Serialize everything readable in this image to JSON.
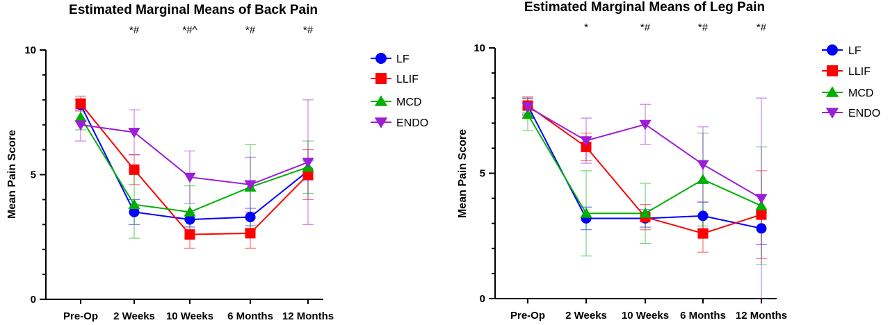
{
  "chart_data": [
    {
      "type": "line",
      "title": "Estimated Marginal Means of Back Pain",
      "ylabel": "Mean Pain Score",
      "xlabel": "",
      "ylim": [
        0,
        10
      ],
      "yticks": [
        "0",
        "5",
        "10"
      ],
      "categories": [
        "Pre-Op",
        "2 Weeks",
        "10 Weeks",
        "6 Months",
        "12 Months"
      ],
      "significance": [
        "",
        "*#",
        "*#^",
        "*#",
        "*#"
      ],
      "legend_position": "right",
      "series": [
        {
          "name": "LF",
          "color": "#0000FF",
          "marker": "circle",
          "values": [
            7.8,
            3.5,
            3.2,
            3.3,
            5.15
          ],
          "err": [
            0.2,
            0.5,
            0.3,
            0.35,
            0.4
          ]
        },
        {
          "name": "LLIF",
          "color": "#FF0000",
          "marker": "square",
          "values": [
            7.85,
            5.2,
            2.6,
            2.65,
            5.0
          ],
          "err": [
            0.3,
            0.6,
            0.55,
            0.6,
            1.0
          ]
        },
        {
          "name": "MCD",
          "color": "#00B000",
          "marker": "triangle-up",
          "values": [
            7.3,
            3.8,
            3.5,
            4.5,
            5.3
          ],
          "err": [
            0.5,
            1.35,
            1.05,
            1.7,
            1.05
          ]
        },
        {
          "name": "ENDO",
          "color": "#9B1FD6",
          "marker": "triangle-down",
          "values": [
            7.0,
            6.7,
            4.9,
            4.6,
            5.5
          ],
          "err": [
            0.65,
            0.9,
            1.05,
            1.1,
            2.5
          ]
        }
      ]
    },
    {
      "type": "line",
      "title": "Estimated Marginal Means of Leg Pain",
      "ylabel": "Mean Pain Score",
      "xlabel": "",
      "ylim": [
        0,
        10
      ],
      "yticks": [
        "0",
        "5",
        "10"
      ],
      "categories": [
        "Pre-Op",
        "2 Weeks",
        "10 Weeks",
        "6 Months",
        "12 Months"
      ],
      "significance": [
        "",
        "*",
        "*#",
        "*#",
        "*#"
      ],
      "legend_position": "right",
      "series": [
        {
          "name": "LF",
          "color": "#0000FF",
          "marker": "circle",
          "values": [
            7.7,
            3.2,
            3.2,
            3.3,
            2.8
          ],
          "err": [
            0.3,
            0.45,
            0.35,
            0.55,
            0.65
          ]
        },
        {
          "name": "LLIF",
          "color": "#FF0000",
          "marker": "square",
          "values": [
            7.7,
            6.05,
            3.25,
            2.6,
            3.35
          ],
          "err": [
            0.35,
            0.55,
            0.5,
            0.75,
            1.75
          ]
        },
        {
          "name": "MCD",
          "color": "#00B000",
          "marker": "triangle-up",
          "values": [
            7.35,
            3.4,
            3.4,
            4.75,
            3.7
          ],
          "err": [
            0.65,
            1.7,
            1.2,
            1.85,
            2.35
          ]
        },
        {
          "name": "ENDO",
          "color": "#9B1FD6",
          "marker": "triangle-down",
          "values": [
            7.65,
            6.3,
            6.95,
            5.35,
            4.0
          ],
          "err": [
            0.35,
            0.9,
            0.8,
            1.5,
            4.0
          ]
        }
      ]
    }
  ]
}
